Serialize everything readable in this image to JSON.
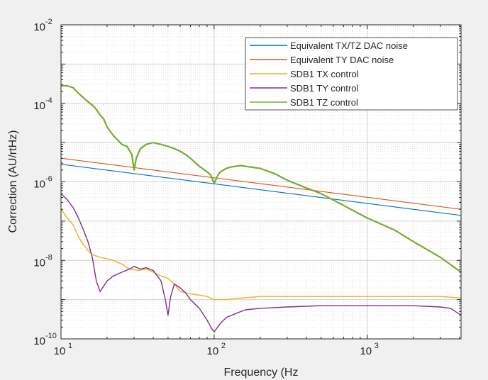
{
  "chart_data": {
    "type": "line",
    "title": "",
    "xlabel": "Frequency (Hz",
    "ylabel": "Correction (AU/rtHz)",
    "xscale": "log",
    "yscale": "log",
    "xlim": [
      10,
      4096
    ],
    "ylim": [
      1e-10,
      0.01
    ],
    "grid": "major and minor on",
    "legend_position": "top-right",
    "x_ticks": [
      {
        "base": "10",
        "exp": "1"
      },
      {
        "base": "10",
        "exp": "2"
      },
      {
        "base": "10",
        "exp": "3"
      }
    ],
    "y_ticks": [
      {
        "base": "10",
        "exp": "-2"
      },
      {
        "base": "10",
        "exp": "-4"
      },
      {
        "base": "10",
        "exp": "-6"
      },
      {
        "base": "10",
        "exp": "-8"
      },
      {
        "base": "10",
        "exp": "-10"
      }
    ],
    "series": [
      {
        "name": "Equivalent TX/TZ DAC noise",
        "color": "#0072bd",
        "x": [
          10,
          4096
        ],
        "y": [
          2.8e-06,
          1.4e-07
        ]
      },
      {
        "name": "Equivalent TY DAC noise",
        "color": "#d95319",
        "x": [
          10,
          4096
        ],
        "y": [
          4e-06,
          2e-07
        ]
      },
      {
        "name": "SDB1 TX control",
        "color": "#edb120",
        "x": [
          10,
          11,
          12,
          13,
          14,
          15,
          16,
          18,
          20,
          22,
          25,
          28,
          32,
          36,
          40,
          45,
          50,
          55,
          60,
          70,
          80,
          90,
          100,
          120,
          150,
          200,
          300,
          500,
          700,
          1000,
          1500,
          2000,
          3000,
          4096
        ],
        "y": [
          2e-07,
          1.2e-07,
          8e-08,
          4e-08,
          2.5e-08,
          1.8e-08,
          1.4e-08,
          1.2e-08,
          1.1e-08,
          1e-08,
          8e-09,
          6e-09,
          5.5e-09,
          6e-09,
          5e-09,
          4e-09,
          3.5e-09,
          2.5e-09,
          1.6e-09,
          1.4e-09,
          1.3e-09,
          1.2e-09,
          1e-09,
          1e-09,
          1.1e-09,
          1.2e-09,
          1.2e-09,
          1.2e-09,
          1.2e-09,
          1.2e-09,
          1.2e-09,
          1.2e-09,
          1.2e-09,
          1.1e-09
        ]
      },
      {
        "name": "SDB1 TY control",
        "color": "#7e2f8e",
        "x": [
          10,
          11,
          12,
          13,
          14,
          15,
          16,
          17,
          18,
          20,
          22,
          25,
          28,
          30,
          33,
          36,
          40,
          45,
          48,
          50,
          52,
          55,
          60,
          65,
          70,
          80,
          90,
          95,
          100,
          110,
          120,
          140,
          160,
          200,
          300,
          500,
          700,
          1000,
          1500,
          2000,
          3000,
          3500,
          4096
        ],
        "y": [
          5e-07,
          3.5e-07,
          2.2e-07,
          1.2e-07,
          6e-08,
          3e-08,
          1.2e-08,
          3e-09,
          1.6e-09,
          3e-09,
          4e-09,
          5e-09,
          6e-09,
          7e-09,
          6e-09,
          6.5e-09,
          5.5e-09,
          3e-09,
          1e-09,
          4e-10,
          1.2e-09,
          2.5e-09,
          2e-09,
          1.5e-09,
          1e-09,
          6e-10,
          3e-10,
          2e-10,
          1.5e-10,
          2.5e-10,
          3.5e-10,
          4.5e-10,
          5.5e-10,
          6e-10,
          6.5e-10,
          7e-10,
          7e-10,
          7e-10,
          7e-10,
          7e-10,
          6.5e-10,
          6e-10,
          4e-10
        ]
      },
      {
        "name": "SDB1 TZ control",
        "color": "#77ac30",
        "x": [
          10,
          11,
          12,
          13,
          14,
          15,
          16,
          17,
          18,
          19,
          20,
          22,
          25,
          27,
          29,
          30,
          31,
          33,
          36,
          40,
          45,
          50,
          55,
          60,
          65,
          70,
          80,
          90,
          95,
          100,
          105,
          110,
          120,
          130,
          150,
          170,
          200,
          250,
          300,
          400,
          500,
          700,
          1000,
          1500,
          2000,
          3000,
          4096
        ],
        "y": [
          0.00028,
          0.00028,
          0.00025,
          0.00018,
          0.00014,
          0.00011,
          9e-05,
          7e-05,
          5e-05,
          4e-05,
          2.5e-05,
          1.5e-05,
          9e-06,
          8e-06,
          5e-06,
          2e-06,
          4e-06,
          7e-06,
          9e-06,
          1e-05,
          9e-06,
          8e-06,
          7e-06,
          6e-06,
          5e-06,
          4e-06,
          2.5e-06,
          1.8e-06,
          1.5e-06,
          9e-07,
          1.4e-06,
          1.8e-06,
          2.2e-06,
          2.4e-06,
          2.6e-06,
          2.4e-06,
          2.2e-06,
          1.6e-06,
          1.1e-06,
          7e-07,
          5e-07,
          2.5e-07,
          1.2e-07,
          6e-08,
          3e-08,
          1.2e-08,
          5e-09
        ]
      }
    ]
  }
}
